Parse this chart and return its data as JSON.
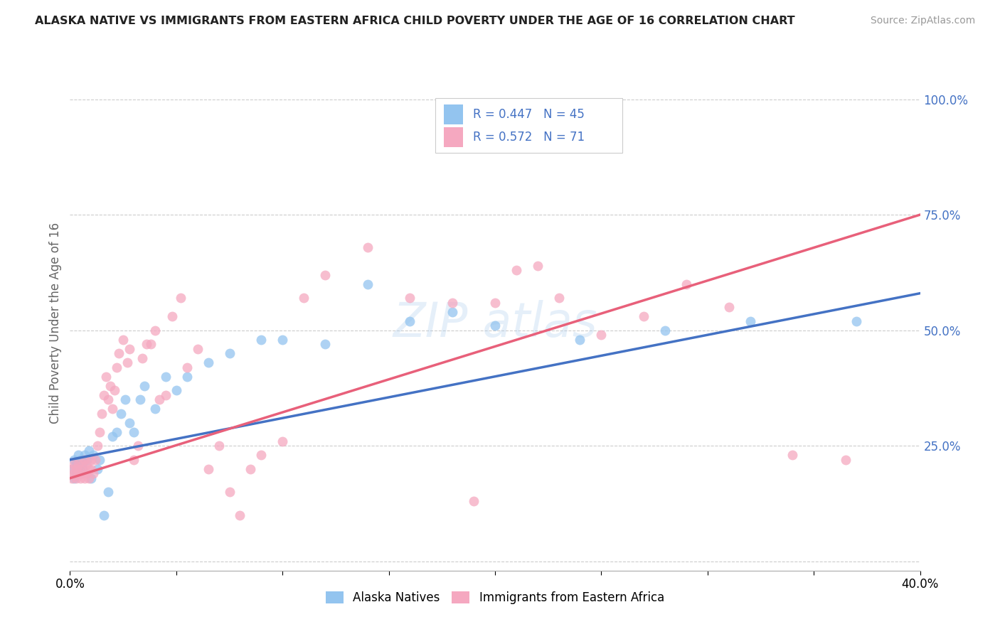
{
  "title": "ALASKA NATIVE VS IMMIGRANTS FROM EASTERN AFRICA CHILD POVERTY UNDER THE AGE OF 16 CORRELATION CHART",
  "source": "Source: ZipAtlas.com",
  "ylabel": "Child Poverty Under the Age of 16",
  "xlim": [
    0.0,
    0.4
  ],
  "ylim": [
    -0.02,
    1.05
  ],
  "yticks": [
    0.0,
    0.25,
    0.5,
    0.75,
    1.0
  ],
  "ytick_labels": [
    "",
    "25.0%",
    "50.0%",
    "75.0%",
    "100.0%"
  ],
  "xticks": [
    0.0,
    0.05,
    0.1,
    0.15,
    0.2,
    0.25,
    0.3,
    0.35,
    0.4
  ],
  "blue_R": 0.447,
  "blue_N": 45,
  "pink_R": 0.572,
  "pink_N": 71,
  "blue_color": "#93c4ef",
  "pink_color": "#f5a8c0",
  "blue_line_color": "#4472C4",
  "pink_line_color": "#e8607a",
  "legend_label_blue": "Alaska Natives",
  "legend_label_pink": "Immigrants from Eastern Africa",
  "blue_x": [
    0.001,
    0.002,
    0.002,
    0.003,
    0.003,
    0.004,
    0.004,
    0.005,
    0.005,
    0.006,
    0.006,
    0.007,
    0.008,
    0.009,
    0.01,
    0.011,
    0.013,
    0.014,
    0.016,
    0.018,
    0.02,
    0.022,
    0.024,
    0.026,
    0.028,
    0.03,
    0.033,
    0.035,
    0.04,
    0.045,
    0.05,
    0.055,
    0.065,
    0.075,
    0.09,
    0.1,
    0.12,
    0.14,
    0.16,
    0.18,
    0.2,
    0.24,
    0.28,
    0.32,
    0.37
  ],
  "blue_y": [
    0.2,
    0.22,
    0.18,
    0.19,
    0.21,
    0.23,
    0.2,
    0.22,
    0.19,
    0.21,
    0.2,
    0.23,
    0.22,
    0.24,
    0.18,
    0.23,
    0.2,
    0.22,
    0.1,
    0.15,
    0.27,
    0.28,
    0.32,
    0.35,
    0.3,
    0.28,
    0.35,
    0.38,
    0.33,
    0.4,
    0.37,
    0.4,
    0.43,
    0.45,
    0.48,
    0.48,
    0.47,
    0.6,
    0.52,
    0.54,
    0.51,
    0.48,
    0.5,
    0.52,
    0.52
  ],
  "pink_x": [
    0.001,
    0.001,
    0.002,
    0.002,
    0.003,
    0.003,
    0.004,
    0.004,
    0.005,
    0.005,
    0.006,
    0.006,
    0.007,
    0.007,
    0.008,
    0.008,
    0.009,
    0.009,
    0.01,
    0.01,
    0.011,
    0.012,
    0.013,
    0.014,
    0.015,
    0.016,
    0.017,
    0.018,
    0.019,
    0.02,
    0.021,
    0.022,
    0.023,
    0.025,
    0.027,
    0.028,
    0.03,
    0.032,
    0.034,
    0.036,
    0.038,
    0.04,
    0.042,
    0.045,
    0.048,
    0.052,
    0.055,
    0.06,
    0.065,
    0.07,
    0.075,
    0.08,
    0.085,
    0.09,
    0.1,
    0.11,
    0.12,
    0.14,
    0.16,
    0.18,
    0.19,
    0.2,
    0.21,
    0.22,
    0.23,
    0.25,
    0.27,
    0.29,
    0.31,
    0.34,
    0.365
  ],
  "pink_y": [
    0.18,
    0.2,
    0.19,
    0.21,
    0.18,
    0.2,
    0.19,
    0.21,
    0.18,
    0.2,
    0.19,
    0.21,
    0.18,
    0.22,
    0.19,
    0.21,
    0.2,
    0.18,
    0.22,
    0.2,
    0.19,
    0.22,
    0.25,
    0.28,
    0.32,
    0.36,
    0.4,
    0.35,
    0.38,
    0.33,
    0.37,
    0.42,
    0.45,
    0.48,
    0.43,
    0.46,
    0.22,
    0.25,
    0.44,
    0.47,
    0.47,
    0.5,
    0.35,
    0.36,
    0.53,
    0.57,
    0.42,
    0.46,
    0.2,
    0.25,
    0.15,
    0.1,
    0.2,
    0.23,
    0.26,
    0.57,
    0.62,
    0.68,
    0.57,
    0.56,
    0.13,
    0.56,
    0.63,
    0.64,
    0.57,
    0.49,
    0.53,
    0.6,
    0.55,
    0.23,
    0.22
  ]
}
